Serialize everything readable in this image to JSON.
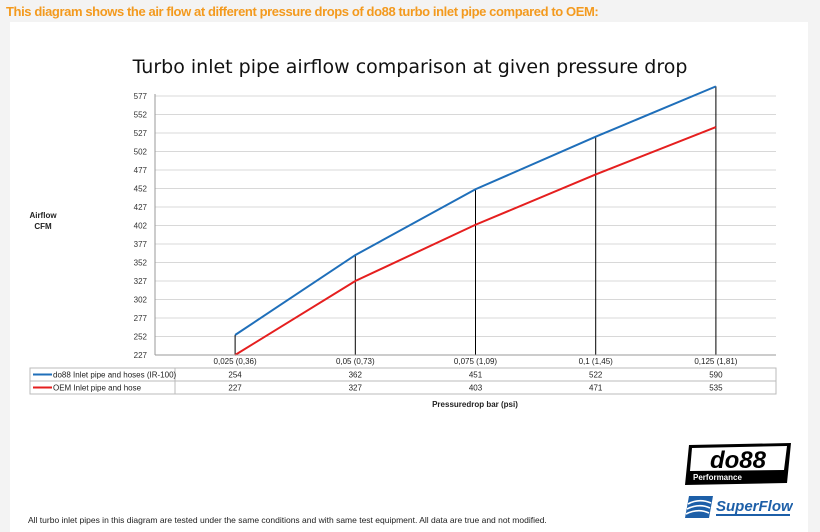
{
  "heading": "This diagram shows the air flow at different pressure drops of do88 turbo inlet pipe compared to OEM:",
  "footer": "All turbo inlet pipes in this diagram are tested under the same conditions and with same test equipment. All data are true and not modified.",
  "logos": {
    "do88": "do88",
    "do88_sub": "Performance",
    "superflow": "SuperFlow"
  },
  "chart_data": {
    "type": "line",
    "title": "Turbo inlet pipe airflow comparison at given pressure drop",
    "xlabel": "Pressuredrop bar (psi)",
    "ylabel": [
      "Airflow",
      "CFM"
    ],
    "categories": [
      "0,025 (0,36)",
      "0,05 (0,73)",
      "0,075 (1,09)",
      "0,1 (1,45)",
      "0,125 (1,81)"
    ],
    "yticks": [
      227,
      252,
      277,
      302,
      327,
      352,
      377,
      402,
      427,
      452,
      477,
      502,
      527,
      552,
      577
    ],
    "ylim": [
      227,
      590
    ],
    "grid": true,
    "legend": "data-table-below",
    "series": [
      {
        "name": "do88 Inlet pipe and hoses (IR-100)",
        "color": "#1f6fba",
        "values": [
          254,
          362,
          451,
          522,
          590
        ]
      },
      {
        "name": "OEM Inlet pipe and hose",
        "color": "#e51f1f",
        "values": [
          227,
          327,
          403,
          471,
          535
        ]
      }
    ]
  }
}
